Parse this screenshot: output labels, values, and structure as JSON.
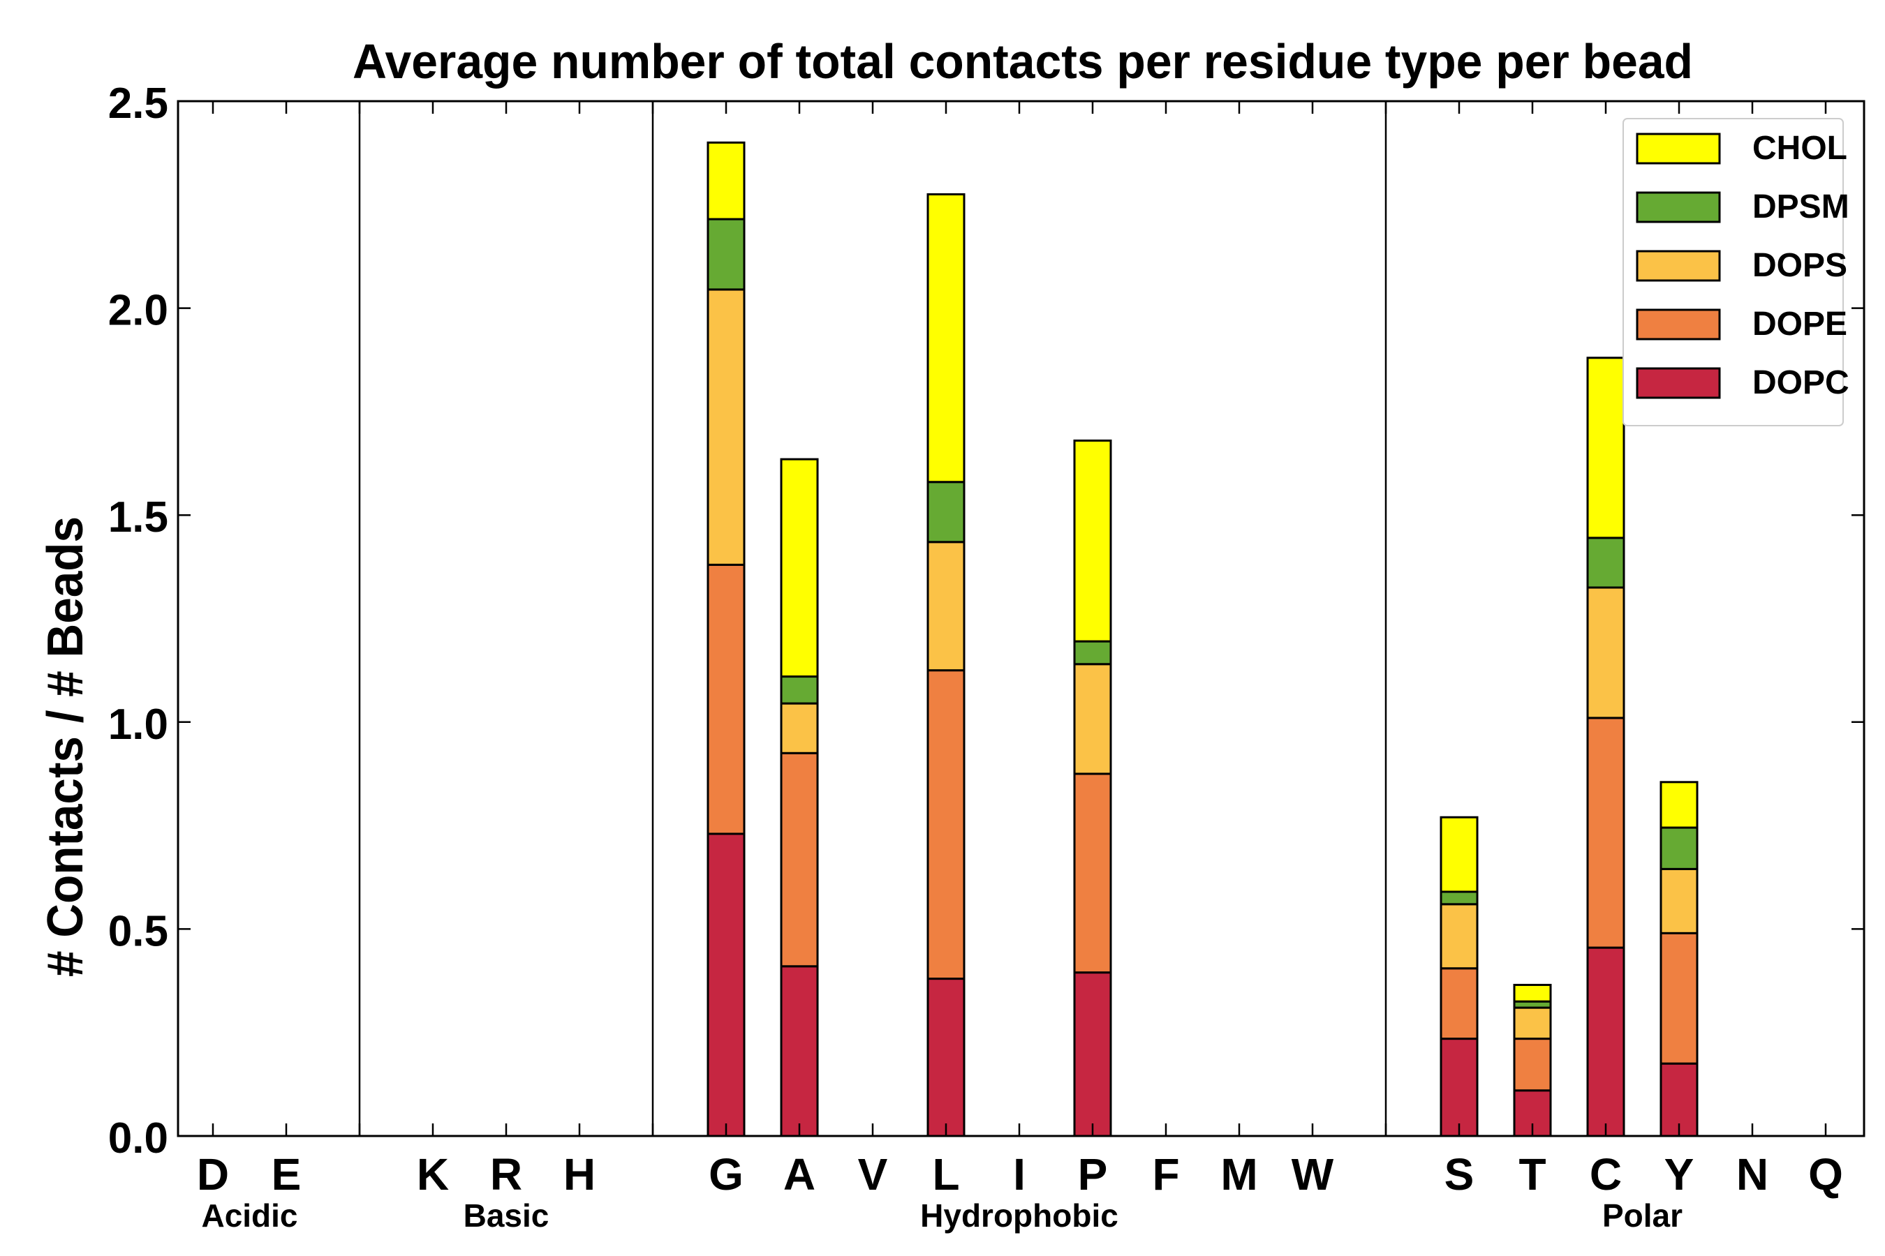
{
  "chart_data": {
    "type": "bar",
    "stacked": true,
    "title": "Average number of total contacts per residue type per bead",
    "ylabel": "# Contacts / # Beads",
    "xlabel": "",
    "ylim": [
      0,
      2.5
    ],
    "yticks": [
      "0.0",
      "0.5",
      "1.0",
      "1.5",
      "2.0",
      "2.5"
    ],
    "ytick_values": [
      0,
      0.5,
      1.0,
      1.5,
      2.0,
      2.5
    ],
    "categories": [
      "D",
      "E",
      "",
      "K",
      "R",
      "H",
      "",
      "G",
      "A",
      "V",
      "L",
      "I",
      "P",
      "F",
      "M",
      "W",
      "",
      "S",
      "T",
      "C",
      "Y",
      "N",
      "Q"
    ],
    "groups": [
      {
        "label": "Acidic",
        "start": 0,
        "end": 1
      },
      {
        "label": "Basic",
        "start": 3,
        "end": 5
      },
      {
        "label": "Hydrophobic",
        "start": 7,
        "end": 15
      },
      {
        "label": "Polar",
        "start": 17,
        "end": 22
      }
    ],
    "separators_after_index": [
      2,
      6,
      16
    ],
    "series": [
      {
        "name": "DOPC",
        "color": "#c62641",
        "values": [
          0,
          0,
          0,
          0,
          0,
          0,
          0,
          0.73,
          0.41,
          0,
          0.38,
          0,
          0.395,
          0,
          0,
          0,
          0,
          0.235,
          0.11,
          0.455,
          0.175,
          0,
          0
        ]
      },
      {
        "name": "DOPE",
        "color": "#ef8041",
        "values": [
          0,
          0,
          0,
          0,
          0,
          0,
          0,
          0.65,
          0.515,
          0,
          0.745,
          0,
          0.48,
          0,
          0,
          0,
          0,
          0.17,
          0.125,
          0.555,
          0.315,
          0,
          0
        ]
      },
      {
        "name": "DOPS",
        "color": "#fbc247",
        "values": [
          0,
          0,
          0,
          0,
          0,
          0,
          0,
          0.665,
          0.12,
          0,
          0.31,
          0,
          0.265,
          0,
          0,
          0,
          0,
          0.155,
          0.075,
          0.315,
          0.155,
          0,
          0
        ]
      },
      {
        "name": "DPSM",
        "color": "#66aa33",
        "values": [
          0,
          0,
          0,
          0,
          0,
          0,
          0,
          0.17,
          0.065,
          0,
          0.145,
          0,
          0.055,
          0,
          0,
          0,
          0,
          0.03,
          0.015,
          0.12,
          0.1,
          0,
          0
        ]
      },
      {
        "name": "CHOL",
        "color": "#ffff00",
        "values": [
          0,
          0,
          0,
          0,
          0,
          0,
          0,
          0.185,
          0.525,
          0,
          0.695,
          0,
          0.485,
          0,
          0,
          0,
          0,
          0.18,
          0.04,
          0.435,
          0.11,
          0,
          0
        ]
      }
    ],
    "legend": {
      "placement": "top-right",
      "order": [
        "CHOL",
        "DPSM",
        "DOPS",
        "DOPE",
        "DOPC"
      ]
    }
  }
}
